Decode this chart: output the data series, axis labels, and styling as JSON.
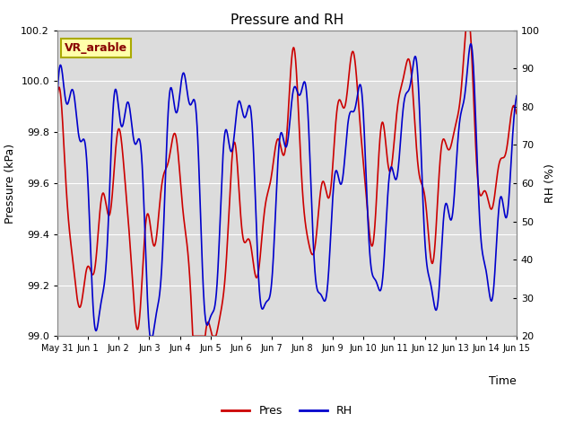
{
  "title": "Pressure and RH",
  "xlabel": "Time",
  "ylabel_left": "Pressure (kPa)",
  "ylabel_right": "RH (%)",
  "annotation": "VR_arable",
  "ylim_left": [
    99.0,
    100.2
  ],
  "ylim_right": [
    20,
    100
  ],
  "yticks_left": [
    99.0,
    99.2,
    99.4,
    99.6,
    99.8,
    100.0,
    100.2
  ],
  "yticks_right": [
    20,
    30,
    40,
    50,
    60,
    70,
    80,
    90,
    100
  ],
  "xtick_labels": [
    "May 31",
    "Jun 1",
    "Jun 2",
    "Jun 3",
    "Jun 4",
    "Jun 5",
    "Jun 6",
    "Jun 7",
    "Jun 8",
    "Jun 9",
    "Jun 10",
    "Jun 11",
    "Jun 12",
    "Jun 13",
    "Jun 14",
    "Jun 15"
  ],
  "color_pres": "#cc0000",
  "color_rh": "#0000cc",
  "bg_color": "#dcdcdc",
  "linewidth": 1.2,
  "legend_labels": [
    "Pres",
    "RH"
  ],
  "annotation_facecolor": "#ffffaa",
  "annotation_edgecolor": "#aaaa00",
  "annotation_textcolor": "#880000"
}
